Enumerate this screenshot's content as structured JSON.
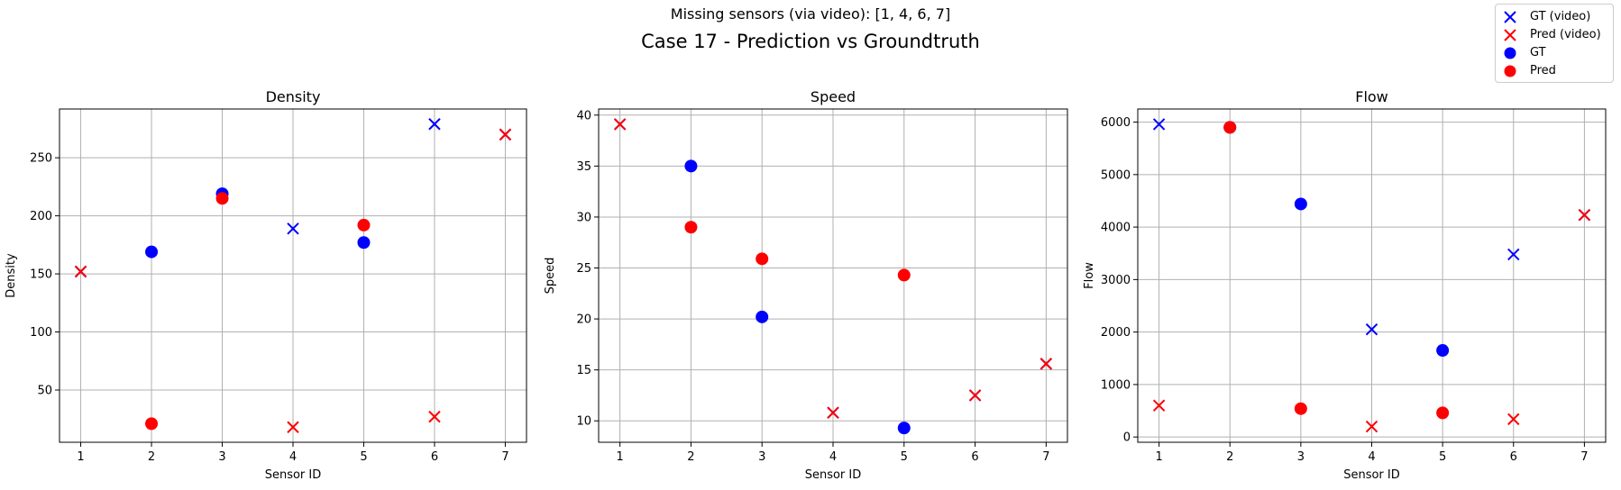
{
  "figure": {
    "suptitle_line1": "Missing sensors (via video): [1, 4, 6, 7]",
    "suptitle_line2": "Case 17 - Prediction vs Groundtruth"
  },
  "legend": {
    "placement": "top-right",
    "entries": [
      {
        "label": "GT (video)",
        "marker": "x",
        "color": "#0000ff"
      },
      {
        "label": "Pred (video)",
        "marker": "x",
        "color": "#ff0000"
      },
      {
        "label": "GT",
        "marker": "circle",
        "color": "#0000ff"
      },
      {
        "label": "Pred",
        "marker": "circle",
        "color": "#ff0000"
      }
    ]
  },
  "colors": {
    "gt": "#0000ff",
    "pred": "#ff0000",
    "grid": "#b0b0b0"
  },
  "chart_data": [
    {
      "type": "scatter",
      "title": "Density",
      "xlabel": "Sensor ID",
      "ylabel": "Density",
      "xlim": [
        0.7,
        7.3
      ],
      "ylim": [
        5,
        292
      ],
      "xticks": [
        1,
        2,
        3,
        4,
        5,
        6,
        7
      ],
      "yticks": [
        50,
        100,
        150,
        200,
        250
      ],
      "grid": true,
      "series": [
        {
          "name": "GT (video)",
          "marker": "x",
          "color": "#0000ff",
          "points": [
            [
              1,
              152
            ],
            [
              4,
              189
            ],
            [
              6,
              279
            ],
            [
              7,
              270
            ]
          ]
        },
        {
          "name": "Pred (video)",
          "marker": "x",
          "color": "#ff0000",
          "points": [
            [
              1,
              152
            ],
            [
              4,
              18
            ],
            [
              6,
              27
            ],
            [
              7,
              270
            ]
          ]
        },
        {
          "name": "GT",
          "marker": "circle",
          "color": "#0000ff",
          "points": [
            [
              2,
              169
            ],
            [
              3,
              219
            ],
            [
              5,
              177
            ]
          ]
        },
        {
          "name": "Pred",
          "marker": "circle",
          "color": "#ff0000",
          "points": [
            [
              2,
              21
            ],
            [
              3,
              215
            ],
            [
              5,
              192
            ]
          ]
        }
      ]
    },
    {
      "type": "scatter",
      "title": "Speed",
      "xlabel": "Sensor ID",
      "ylabel": "Speed",
      "xlim": [
        0.7,
        7.3
      ],
      "ylim": [
        7.9,
        40.6
      ],
      "xticks": [
        1,
        2,
        3,
        4,
        5,
        6,
        7
      ],
      "yticks": [
        10,
        15,
        20,
        25,
        30,
        35,
        40
      ],
      "grid": true,
      "series": [
        {
          "name": "GT (video)",
          "marker": "x",
          "color": "#0000ff",
          "points": [
            [
              1,
              39.1
            ],
            [
              4,
              10.8
            ],
            [
              6,
              12.5
            ],
            [
              7,
              15.6
            ]
          ]
        },
        {
          "name": "Pred (video)",
          "marker": "x",
          "color": "#ff0000",
          "points": [
            [
              1,
              39.1
            ],
            [
              4,
              10.8
            ],
            [
              6,
              12.5
            ],
            [
              7,
              15.6
            ]
          ]
        },
        {
          "name": "GT",
          "marker": "circle",
          "color": "#0000ff",
          "points": [
            [
              2,
              35.0
            ],
            [
              3,
              20.2
            ],
            [
              5,
              9.3
            ]
          ]
        },
        {
          "name": "Pred",
          "marker": "circle",
          "color": "#ff0000",
          "points": [
            [
              2,
              29.0
            ],
            [
              3,
              25.9
            ],
            [
              5,
              24.3
            ]
          ]
        }
      ]
    },
    {
      "type": "scatter",
      "title": "Flow",
      "xlabel": "Sensor ID",
      "ylabel": "Flow",
      "xlim": [
        0.7,
        7.3
      ],
      "ylim": [
        -100,
        6250
      ],
      "xticks": [
        1,
        2,
        3,
        4,
        5,
        6,
        7
      ],
      "yticks": [
        0,
        1000,
        2000,
        3000,
        4000,
        5000,
        6000
      ],
      "grid": true,
      "series": [
        {
          "name": "GT (video)",
          "marker": "x",
          "color": "#0000ff",
          "points": [
            [
              1,
              5960
            ],
            [
              4,
              2050
            ],
            [
              6,
              3480
            ],
            [
              7,
              4230
            ]
          ]
        },
        {
          "name": "Pred (video)",
          "marker": "x",
          "color": "#ff0000",
          "points": [
            [
              1,
              600
            ],
            [
              4,
              200
            ],
            [
              6,
              340
            ],
            [
              7,
              4230
            ]
          ]
        },
        {
          "name": "GT",
          "marker": "circle",
          "color": "#0000ff",
          "points": [
            [
              2,
              5900
            ],
            [
              3,
              4440
            ],
            [
              5,
              1650
            ]
          ]
        },
        {
          "name": "Pred",
          "marker": "circle",
          "color": "#ff0000",
          "points": [
            [
              2,
              5900
            ],
            [
              3,
              540
            ],
            [
              5,
              460
            ]
          ]
        }
      ]
    }
  ]
}
